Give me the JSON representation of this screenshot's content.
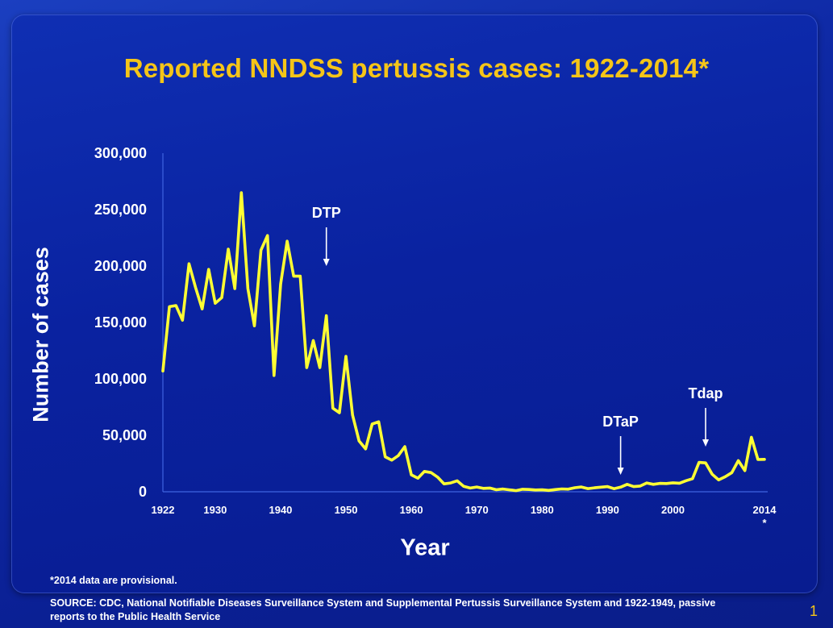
{
  "slide": {
    "title": "Reported NNDSS pertussis cases: 1922-2014*",
    "footnote": "*2014 data are provisional.",
    "source": "SOURCE: CDC, National Notifiable Diseases Surveillance System and Supplemental Pertussis Surveillance System and 1922-1949, passive reports to the Public Health Service",
    "slide_number": "1"
  },
  "colors": {
    "line": "#ffff33",
    "title": "#f5c518",
    "text": "#ffffff",
    "background": "#0a22a0"
  },
  "chart_data": {
    "type": "line",
    "title": "Reported NNDSS pertussis cases: 1922-2014*",
    "xlabel": "Year",
    "ylabel": "Number of cases",
    "xlim": [
      1922,
      2014
    ],
    "ylim": [
      0,
      300000
    ],
    "grid": false,
    "yticks": [
      0,
      50000,
      100000,
      150000,
      200000,
      250000,
      300000
    ],
    "ytick_labels": [
      "0",
      "50,000",
      "100,000",
      "150,000",
      "200,000",
      "250,000",
      "300,000"
    ],
    "xticks": [
      1922,
      1930,
      1940,
      1950,
      1960,
      1970,
      1980,
      1990,
      2000,
      2014
    ],
    "xtick_labels": [
      "1922",
      "1930",
      "1940",
      "1950",
      "1960",
      "1970",
      "1980",
      "1990",
      "2000",
      "2014"
    ],
    "xtick_note": {
      "year": 2014,
      "text": "*"
    },
    "annotations": [
      {
        "text": "DTP",
        "x": 1947,
        "y": 200000
      },
      {
        "text": "DTaP",
        "x": 1992,
        "y": 15000
      },
      {
        "text": "Tdap",
        "x": 2005,
        "y": 40000
      }
    ],
    "series": [
      {
        "x": [
          1922,
          1923,
          1924,
          1925,
          1926,
          1927,
          1928,
          1929,
          1930,
          1931,
          1932,
          1933,
          1934,
          1935,
          1936,
          1937,
          1938,
          1939,
          1940,
          1941,
          1942,
          1943,
          1944,
          1945,
          1946,
          1947,
          1948,
          1949,
          1950,
          1951,
          1952,
          1953,
          1954,
          1955,
          1956,
          1957,
          1958,
          1959,
          1960,
          1961,
          1962,
          1963,
          1964,
          1965,
          1966,
          1967,
          1968,
          1969,
          1970,
          1971,
          1972,
          1973,
          1974,
          1975,
          1976,
          1977,
          1978,
          1979,
          1980,
          1981,
          1982,
          1983,
          1984,
          1985,
          1986,
          1987,
          1988,
          1989,
          1990,
          1991,
          1992,
          1993,
          1994,
          1995,
          1996,
          1997,
          1998,
          1999,
          2000,
          2001,
          2002,
          2003,
          2004,
          2005,
          2006,
          2007,
          2008,
          2009,
          2010,
          2011,
          2012,
          2013,
          2014
        ],
        "values": [
          107000,
          164000,
          165000,
          152000,
          202000,
          181000,
          162000,
          197000,
          167000,
          172000,
          215000,
          180000,
          265000,
          180000,
          147000,
          214000,
          227000,
          103000,
          184000,
          222000,
          191000,
          191000,
          110000,
          134000,
          110000,
          156000,
          74000,
          70000,
          120000,
          68000,
          45000,
          38000,
          60000,
          62000,
          31000,
          28000,
          32000,
          40000,
          15000,
          12000,
          18000,
          17000,
          13000,
          7000,
          7800,
          9700,
          4800,
          3300,
          4200,
          3000,
          3300,
          1800,
          2400,
          1700,
          1000,
          2200,
          2000,
          1600,
          1700,
          1200,
          1900,
          2500,
          2300,
          3600,
          4200,
          2800,
          3500,
          4100,
          4600,
          2700,
          4100,
          6600,
          4600,
          5100,
          7800,
          6600,
          7400,
          7300,
          7900,
          7600,
          9800,
          11600,
          26000,
          25600,
          15600,
          10500,
          13300,
          16900,
          27600,
          18700,
          48300,
          28600,
          28700
        ]
      }
    ]
  }
}
